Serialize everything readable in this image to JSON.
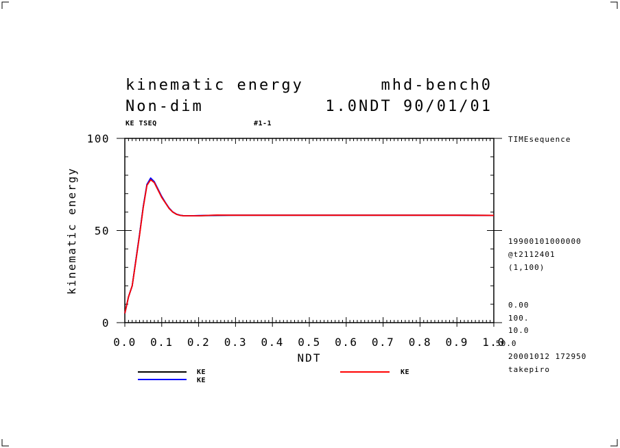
{
  "title": {
    "line1_left": "kinematic energy",
    "line1_right": "mhd-bench0",
    "line2_left": "Non-dim",
    "line2_right": "1.0NDT 90/01/01"
  },
  "header_labels": {
    "var_name": "KE TSEQ",
    "index": "#1-1"
  },
  "side_info": {
    "label_top": "TIMEsequence",
    "date_code": "19900101000000",
    "file_id": "@t2112401",
    "dims": "(1,100)",
    "v1": "0.00",
    "v2": "100.",
    "v3": "10.0",
    "v4": "50.0",
    "timestamp": "20001012 172950",
    "user": "takepiro"
  },
  "legend": {
    "items": [
      {
        "label": "KE",
        "color": "#000000"
      },
      {
        "label": "KE",
        "color": "#0000ff"
      },
      {
        "label": "KE",
        "color": "#ff0000"
      }
    ]
  },
  "chart_data": {
    "type": "line",
    "title": "kinematic energy",
    "xlabel": "NDT",
    "ylabel": "kinematic energy",
    "xlim": [
      0.0,
      1.0
    ],
    "ylim": [
      0,
      100
    ],
    "x_ticks": [
      "0.0",
      "0.1",
      "0.2",
      "0.3",
      "0.4",
      "0.5",
      "0.6",
      "0.7",
      "0.8",
      "0.9",
      "1.0"
    ],
    "y_ticks": [
      "0",
      "50",
      "100"
    ],
    "x": [
      0.0,
      0.01,
      0.02,
      0.03,
      0.04,
      0.05,
      0.06,
      0.07,
      0.08,
      0.09,
      0.1,
      0.11,
      0.12,
      0.13,
      0.14,
      0.15,
      0.16,
      0.17,
      0.18,
      0.2,
      0.25,
      0.3,
      0.4,
      0.5,
      0.6,
      0.7,
      0.8,
      0.9,
      1.0
    ],
    "series": [
      {
        "name": "KE",
        "color": "#000000",
        "values": [
          5,
          14,
          20,
          34,
          48,
          63,
          75,
          78,
          76,
          72,
          68,
          65,
          62,
          60,
          58.8,
          58.2,
          58.0,
          58.0,
          58.0,
          58.0,
          58.2,
          58.3,
          58.3,
          58.3,
          58.3,
          58.3,
          58.3,
          58.3,
          58.2
        ]
      },
      {
        "name": "KE",
        "color": "#0000ff",
        "values": [
          5,
          14,
          20,
          34,
          48,
          63,
          75,
          78.5,
          76.5,
          72.5,
          68.5,
          65.2,
          62.2,
          60.1,
          58.9,
          58.3,
          58.0,
          58.0,
          58.0,
          58.1,
          58.3,
          58.3,
          58.3,
          58.3,
          58.3,
          58.3,
          58.3,
          58.3,
          58.2
        ]
      },
      {
        "name": "KE",
        "color": "#ff0000",
        "values": [
          5,
          14,
          20,
          33.5,
          47.5,
          62.5,
          74.5,
          77.5,
          76,
          72,
          68,
          65,
          62,
          60,
          58.8,
          58.2,
          58.0,
          58.0,
          58.0,
          58.0,
          58.4,
          58.3,
          58.3,
          58.3,
          58.3,
          58.3,
          58.3,
          58.3,
          58.2
        ]
      }
    ]
  }
}
